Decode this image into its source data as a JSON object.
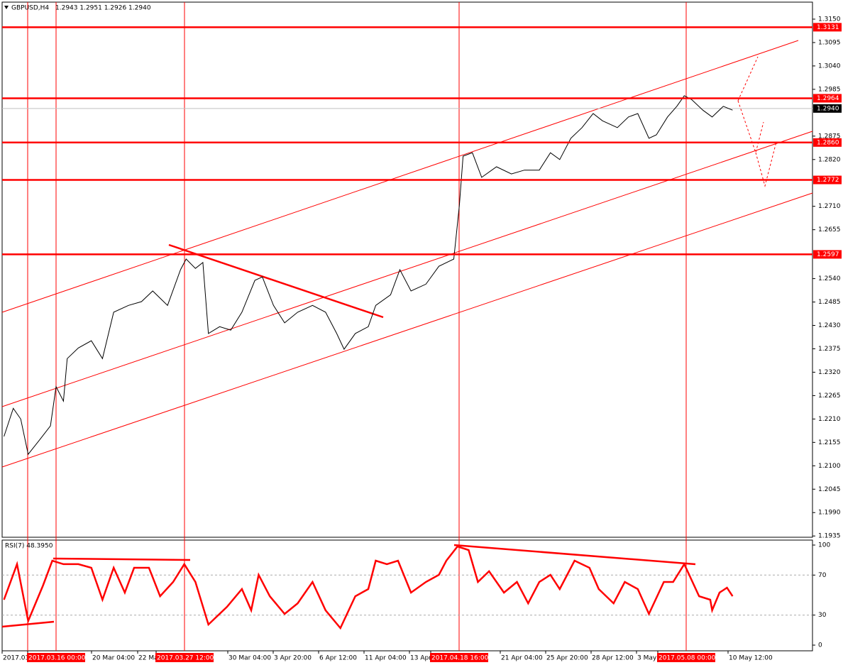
{
  "chart_data": [
    {
      "type": "line",
      "title": "GBPUSD,H4",
      "ohlc_text": "1.2943 1.2951 1.2926 1.2940",
      "color": "#000000",
      "x": [
        1,
        6,
        10,
        14,
        20,
        26,
        29,
        33,
        35,
        41,
        48,
        54,
        60,
        68,
        75,
        81,
        89,
        96,
        99,
        104,
        108,
        111,
        117,
        123,
        129,
        136,
        140,
        146,
        152,
        159,
        167,
        174,
        180,
        184,
        190,
        197,
        201,
        209,
        214,
        220,
        228,
        235,
        243,
        246,
        248,
        253,
        258,
        266,
        274,
        281,
        289,
        295,
        300,
        306,
        312,
        318,
        323,
        331,
        337,
        342,
        348,
        352,
        358,
        363,
        367,
        371,
        377,
        382,
        388,
        393
      ],
      "values": [
        1.2169,
        1.2235,
        1.221,
        1.2127,
        1.216,
        1.2194,
        1.2286,
        1.2252,
        1.2352,
        1.2377,
        1.2394,
        1.2352,
        1.2461,
        1.2477,
        1.2486,
        1.2511,
        1.2477,
        1.2561,
        1.2586,
        1.2564,
        1.2578,
        1.2411,
        1.2427,
        1.2419,
        1.2461,
        1.2536,
        1.2544,
        1.2477,
        1.2436,
        1.2461,
        1.2477,
        1.2461,
        1.2411,
        1.2374,
        1.2411,
        1.2427,
        1.2477,
        1.2502,
        1.2561,
        1.2511,
        1.2527,
        1.2569,
        1.2586,
        1.2711,
        1.2828,
        1.2836,
        1.2778,
        1.2803,
        1.2786,
        1.2795,
        1.2795,
        1.2836,
        1.282,
        1.287,
        1.2895,
        1.2928,
        1.2911,
        1.2895,
        1.292,
        1.2928,
        1.287,
        1.2878,
        1.292,
        1.2945,
        1.297,
        1.2961,
        1.2936,
        1.292,
        1.2945,
        1.2936
      ],
      "xlim": [
        0,
        436
      ],
      "ylim": [
        1.1932,
        1.319
      ],
      "yticks": [
        {
          "value": 1.315,
          "label": "1.3150"
        },
        {
          "value": 1.3095,
          "label": "1.3095"
        },
        {
          "value": 1.304,
          "label": "1.3040"
        },
        {
          "value": 1.2985,
          "label": "1.2985"
        },
        {
          "value": 1.2875,
          "label": "1.2875"
        },
        {
          "value": 1.282,
          "label": "1.2820"
        },
        {
          "value": 1.271,
          "label": "1.2710"
        },
        {
          "value": 1.2655,
          "label": "1.2655"
        },
        {
          "value": 1.254,
          "label": "1.2540"
        },
        {
          "value": 1.2485,
          "label": "1.2485"
        },
        {
          "value": 1.243,
          "label": "1.2430"
        },
        {
          "value": 1.2375,
          "label": "1.2375"
        },
        {
          "value": 1.232,
          "label": "1.2320"
        },
        {
          "value": 1.2265,
          "label": "1.2265"
        },
        {
          "value": 1.221,
          "label": "1.2210"
        },
        {
          "value": 1.2155,
          "label": "1.2155"
        },
        {
          "value": 1.21,
          "label": "1.2100"
        },
        {
          "value": 1.2045,
          "label": "1.2045"
        },
        {
          "value": 1.199,
          "label": "1.1990"
        },
        {
          "value": 1.1935,
          "label": "1.1935"
        }
      ],
      "levels": [
        {
          "value": 1.3131,
          "label": "1.3131"
        },
        {
          "value": 1.2964,
          "label": "1.2964"
        },
        {
          "value": 1.286,
          "label": "1.2860"
        },
        {
          "value": 1.2772,
          "label": "1.2772"
        },
        {
          "value": 1.2597,
          "label": "1.2597"
        }
      ],
      "level_color": "#ff0000",
      "current": {
        "value": 1.294,
        "label": "1.2940"
      },
      "x_labels": [
        "2017.03.",
        "2017.03.16 00:00",
        "20 Mar 04:00",
        "22 Ma",
        "2017.03.27 12:00",
        "30 Mar 04:00",
        "3 Apr 20:00",
        "6 Apr 12:00",
        "11 Apr 04:00",
        "13 Apr",
        "2017.04.18 16:00",
        "21 Apr 04:00",
        "25 Apr 20:00",
        "28 Apr 12:00",
        "3 May",
        "2017.05.08 00:00",
        "10 May 12:00"
      ]
    },
    {
      "type": "line",
      "title": "RSI(7) 48.3950",
      "color": "#ff0000",
      "x": [
        1,
        8,
        14,
        22,
        27,
        33,
        41,
        48,
        54,
        60,
        66,
        71,
        79,
        85,
        92,
        98,
        104,
        111,
        121,
        129,
        134,
        138,
        144,
        152,
        159,
        167,
        174,
        182,
        190,
        197,
        201,
        207,
        213,
        220,
        228,
        235,
        239,
        245,
        251,
        256,
        262,
        270,
        277,
        283,
        289,
        295,
        300,
        308,
        316,
        321,
        329,
        335,
        342,
        348,
        356,
        361,
        367,
        375,
        381,
        382,
        386,
        390,
        393
      ],
      "values": [
        45.4,
        80.9,
        24.1,
        59.6,
        84.4,
        80.9,
        80.9,
        77.3,
        45.4,
        77.3,
        52.5,
        77.3,
        77.3,
        48.9,
        63.1,
        80.9,
        63.1,
        20.6,
        38.3,
        56.0,
        34.8,
        70.2,
        48.9,
        31.2,
        41.8,
        63.1,
        34.8,
        17.0,
        48.9,
        56.0,
        84.4,
        80.9,
        84.4,
        52.5,
        63.1,
        70.2,
        84.4,
        98.6,
        95.0,
        63.1,
        73.8,
        52.5,
        63.1,
        41.8,
        63.1,
        70.2,
        56.0,
        84.4,
        77.3,
        56.0,
        41.8,
        63.1,
        56.0,
        31.2,
        63.1,
        63.1,
        80.9,
        48.9,
        45.4,
        34.8,
        52.5,
        57.4,
        48.9
      ],
      "xlim": [
        0,
        436
      ],
      "ylim": [
        0,
        100
      ],
      "yticks": [
        100,
        70,
        30,
        0
      ]
    }
  ]
}
